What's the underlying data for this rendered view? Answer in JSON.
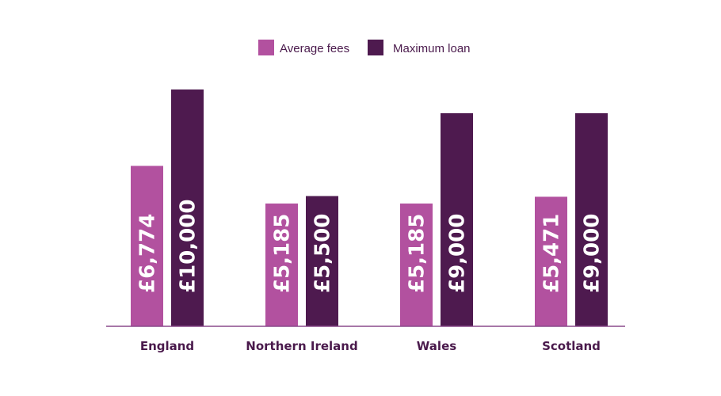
{
  "chart_data": {
    "type": "bar",
    "categories": [
      "England",
      "Northern Ireland",
      "Wales",
      "Scotland"
    ],
    "series": [
      {
        "name": "Average fees",
        "color": "#b2519f",
        "values": [
          6774,
          5185,
          5185,
          5471
        ],
        "labels": [
          "£6,774",
          "£5,185",
          "£5,185",
          "£5,471"
        ]
      },
      {
        "name": "Maximum loan",
        "color": "#4e1a4f",
        "values": [
          10000,
          5500,
          9000,
          9000
        ],
        "labels": [
          "£10,000",
          "£5,500",
          "£9,000",
          "£9,000"
        ]
      }
    ],
    "title": "",
    "xlabel": "",
    "ylabel": "",
    "ylim": [
      0,
      10000
    ],
    "grid": false,
    "legend_position": "top-center",
    "axis_color": "#8a4a8c"
  }
}
